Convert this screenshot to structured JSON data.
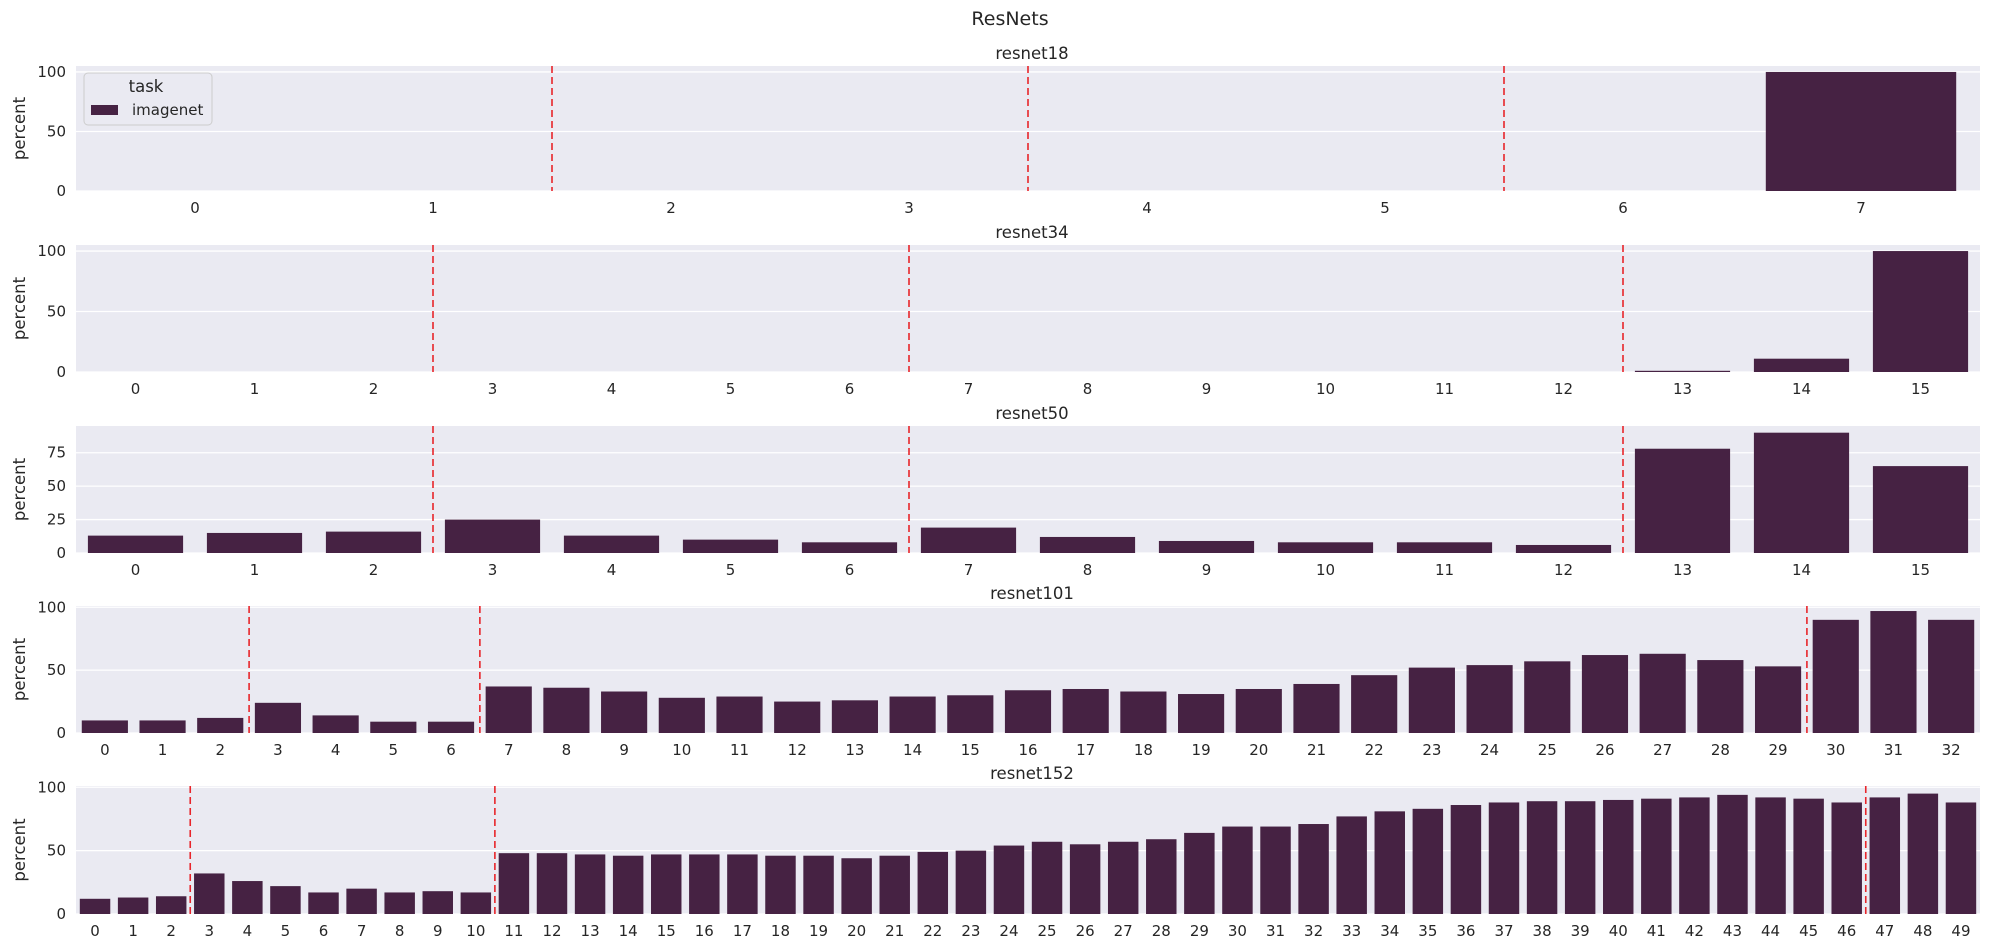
{
  "chart_data": {
    "type": "bar",
    "title": "ResNets",
    "legend": {
      "title": "task",
      "entries": [
        "imagenet"
      ],
      "placement": "upper-left of first panel"
    },
    "bar_color": "#462243",
    "divider_color": "#e8252b",
    "background_color": "#eaeaf2",
    "panels": [
      {
        "name": "resnet18",
        "title": "resnet18",
        "ylabel": "percent",
        "xlabel": "",
        "ylim": [
          0,
          105
        ],
        "yticks": [
          0,
          50,
          100
        ],
        "categories": [
          "0",
          "1",
          "2",
          "3",
          "4",
          "5",
          "6",
          "7"
        ],
        "series": [
          {
            "name": "imagenet",
            "values": [
              0,
              0,
              0,
              0,
              0,
              0,
              0,
              100
            ]
          }
        ],
        "stage_dividers_after_index": [
          1,
          3,
          5
        ]
      },
      {
        "name": "resnet34",
        "title": "resnet34",
        "ylabel": "percent",
        "xlabel": "",
        "ylim": [
          0,
          105
        ],
        "yticks": [
          0,
          50,
          100
        ],
        "categories": [
          "0",
          "1",
          "2",
          "3",
          "4",
          "5",
          "6",
          "7",
          "8",
          "9",
          "10",
          "11",
          "12",
          "13",
          "14",
          "15"
        ],
        "series": [
          {
            "name": "imagenet",
            "values": [
              0,
              0,
              0,
              0,
              0,
              0,
              0,
              0,
              0,
              0,
              0,
              0,
              0,
              1,
              11,
              100
            ]
          }
        ],
        "stage_dividers_after_index": [
          2,
          6,
          12
        ]
      },
      {
        "name": "resnet50",
        "title": "resnet50",
        "ylabel": "percent",
        "xlabel": "",
        "ylim": [
          0,
          95
        ],
        "yticks": [
          0,
          25,
          50,
          75
        ],
        "categories": [
          "0",
          "1",
          "2",
          "3",
          "4",
          "5",
          "6",
          "7",
          "8",
          "9",
          "10",
          "11",
          "12",
          "13",
          "14",
          "15"
        ],
        "series": [
          {
            "name": "imagenet",
            "values": [
              13,
              15,
              16,
              25,
              13,
              10,
              8,
              19,
              12,
              9,
              8,
              8,
              6,
              78,
              90,
              65
            ]
          }
        ],
        "stage_dividers_after_index": [
          2,
          6,
          12
        ]
      },
      {
        "name": "resnet101",
        "title": "resnet101",
        "ylabel": "percent",
        "xlabel": "",
        "ylim": [
          0,
          101
        ],
        "yticks": [
          0,
          50,
          100
        ],
        "categories": [
          "0",
          "1",
          "2",
          "3",
          "4",
          "5",
          "6",
          "7",
          "8",
          "9",
          "10",
          "11",
          "12",
          "13",
          "14",
          "15",
          "16",
          "17",
          "18",
          "19",
          "20",
          "21",
          "22",
          "23",
          "24",
          "25",
          "26",
          "27",
          "28",
          "29",
          "30",
          "31",
          "32"
        ],
        "series": [
          {
            "name": "imagenet",
            "values": [
              10,
              10,
              12,
              24,
              14,
              9,
              9,
              37,
              36,
              33,
              28,
              29,
              25,
              26,
              29,
              30,
              34,
              35,
              33,
              31,
              35,
              39,
              46,
              52,
              54,
              57,
              62,
              63,
              58,
              53,
              90,
              97,
              90
            ]
          }
        ],
        "stage_dividers_after_index": [
          2,
          6,
          29
        ]
      },
      {
        "name": "resnet152",
        "title": "resnet152",
        "ylabel": "percent",
        "xlabel": "",
        "ylim": [
          0,
          101
        ],
        "yticks": [
          0,
          50,
          100
        ],
        "categories": [
          "0",
          "1",
          "2",
          "3",
          "4",
          "5",
          "6",
          "7",
          "8",
          "9",
          "10",
          "11",
          "12",
          "13",
          "14",
          "15",
          "16",
          "17",
          "18",
          "19",
          "20",
          "21",
          "22",
          "23",
          "24",
          "25",
          "26",
          "27",
          "28",
          "29",
          "30",
          "31",
          "32",
          "33",
          "34",
          "35",
          "36",
          "37",
          "38",
          "39",
          "40",
          "41",
          "42",
          "43",
          "44",
          "45",
          "46",
          "47",
          "48",
          "49"
        ],
        "series": [
          {
            "name": "imagenet",
            "values": [
              12,
              13,
              14,
              32,
              26,
              22,
              17,
              20,
              17,
              18,
              17,
              48,
              48,
              47,
              46,
              47,
              47,
              47,
              46,
              46,
              44,
              46,
              49,
              50,
              54,
              57,
              55,
              57,
              59,
              64,
              69,
              69,
              71,
              77,
              81,
              83,
              86,
              88,
              89,
              89,
              90,
              91,
              92,
              94,
              92,
              91,
              88,
              92,
              95,
              88
            ]
          }
        ],
        "stage_dividers_after_index": [
          2,
          10,
          46
        ]
      }
    ]
  }
}
